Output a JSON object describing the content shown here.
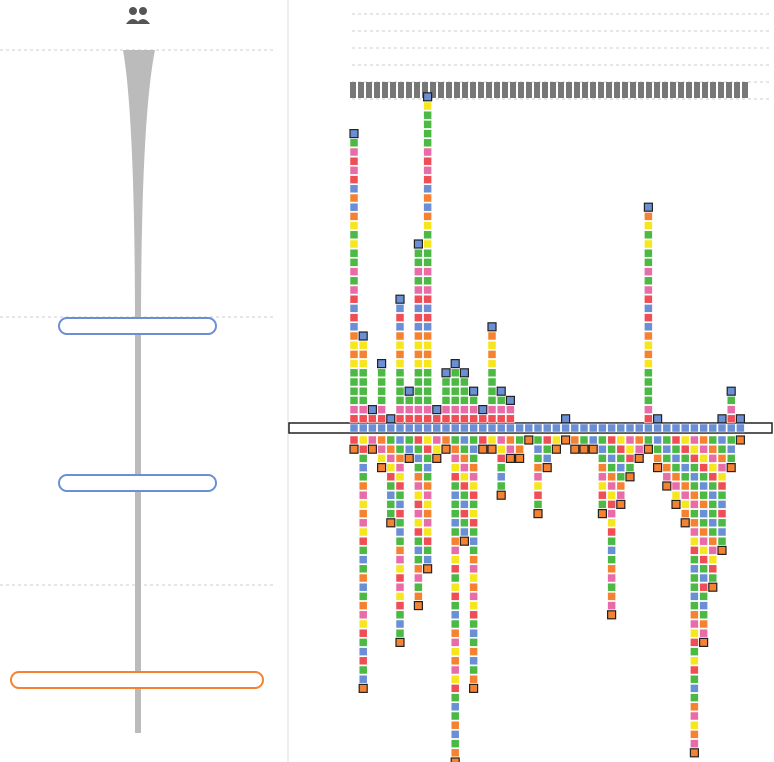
{
  "chart_data": {
    "type": "square-stack",
    "palette": [
      "#f04e56",
      "#f58231",
      "#4cb944",
      "#e86ca7",
      "#6b8fd4",
      "#f5e61e",
      "#4cb944"
    ],
    "axis_color": "#6b8fd4",
    "cap_up_color": "#6b8fd4",
    "cap_down_color": "#f58231",
    "columns": [
      {
        "up": 32,
        "down": 2
      },
      {
        "up": 10,
        "down": 28
      },
      {
        "up": 2,
        "down": 2
      },
      {
        "up": 7,
        "down": 4
      },
      {
        "up": 1,
        "down": 10
      },
      {
        "up": 14,
        "down": 23
      },
      {
        "up": 4,
        "down": 3
      },
      {
        "up": 20,
        "down": 19
      },
      {
        "up": 36,
        "down": 15
      },
      {
        "up": 2,
        "down": 3
      },
      {
        "up": 6,
        "down": 2
      },
      {
        "up": 7,
        "down": 36
      },
      {
        "up": 6,
        "down": 12
      },
      {
        "up": 4,
        "down": 28
      },
      {
        "up": 2,
        "down": 2
      },
      {
        "up": 11,
        "down": 2
      },
      {
        "up": 4,
        "down": 7
      },
      {
        "up": 3,
        "down": 3
      },
      {
        "up": 0,
        "down": 3
      },
      {
        "up": 0,
        "down": 1
      },
      {
        "up": 0,
        "down": 9
      },
      {
        "up": 0,
        "down": 4
      },
      {
        "up": 0,
        "down": 2
      },
      {
        "up": 1,
        "down": 1
      },
      {
        "up": 0,
        "down": 2
      },
      {
        "up": 0,
        "down": 2
      },
      {
        "up": 0,
        "down": 2
      },
      {
        "up": 0,
        "down": 9
      },
      {
        "up": 0,
        "down": 20
      },
      {
        "up": 0,
        "down": 8
      },
      {
        "up": 0,
        "down": 5
      },
      {
        "up": 0,
        "down": 3
      },
      {
        "up": 24,
        "down": 2
      },
      {
        "up": 1,
        "down": 4
      },
      {
        "up": 0,
        "down": 6
      },
      {
        "up": 0,
        "down": 8
      },
      {
        "up": 0,
        "down": 10
      },
      {
        "up": 0,
        "down": 35
      },
      {
        "up": 0,
        "down": 23
      },
      {
        "up": 0,
        "down": 17
      },
      {
        "up": 1,
        "down": 13
      },
      {
        "up": 4,
        "down": 4
      },
      {
        "up": 1,
        "down": 1
      }
    ]
  }
}
